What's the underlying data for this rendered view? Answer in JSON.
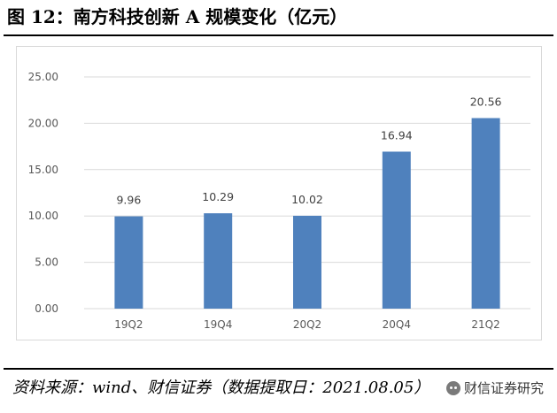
{
  "figure": {
    "title": "图 12：南方科技创新 A 规模变化（亿元）",
    "source": "资料来源：wind、财信证券（数据提取日：2021.08.05）",
    "watermark": "财信证券研究"
  },
  "chart_data": {
    "type": "bar",
    "categories": [
      "19Q2",
      "19Q4",
      "20Q2",
      "20Q4",
      "21Q2"
    ],
    "values": [
      9.96,
      10.29,
      10.02,
      16.94,
      20.56
    ],
    "value_labels": [
      "9.96",
      "10.29",
      "10.02",
      "16.94",
      "20.56"
    ],
    "yticks": [
      "0.00",
      "5.00",
      "10.00",
      "15.00",
      "20.00",
      "25.00"
    ],
    "ylim": [
      0,
      25
    ],
    "grid": true,
    "colors": {
      "bar": "#4f81bd",
      "grid": "#d9d9d9"
    }
  }
}
